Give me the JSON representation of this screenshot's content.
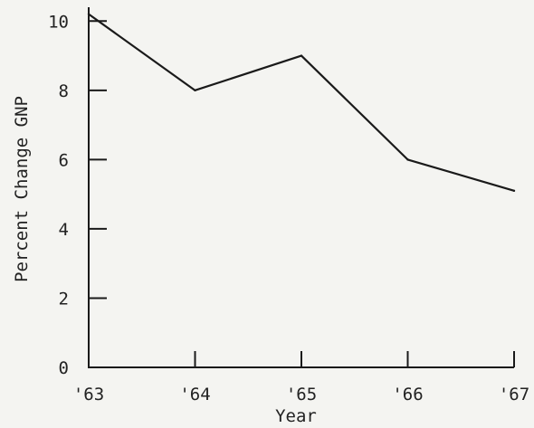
{
  "chart_data": {
    "type": "line",
    "title": "",
    "xlabel": "Year",
    "ylabel": "Percent Change GNP",
    "categories": [
      "'63",
      "'64",
      "'65",
      "'66",
      "'67"
    ],
    "series": [
      {
        "values": [
          10.2,
          8.0,
          9.0,
          6.0,
          5.1
        ]
      }
    ],
    "yticks": [
      0,
      2,
      4,
      6,
      8,
      10
    ],
    "ylim": [
      0,
      10.4
    ],
    "grid": false,
    "colors": {
      "line": "#1a1a1a",
      "axis": "#1a1a1a",
      "text": "#222222"
    }
  }
}
